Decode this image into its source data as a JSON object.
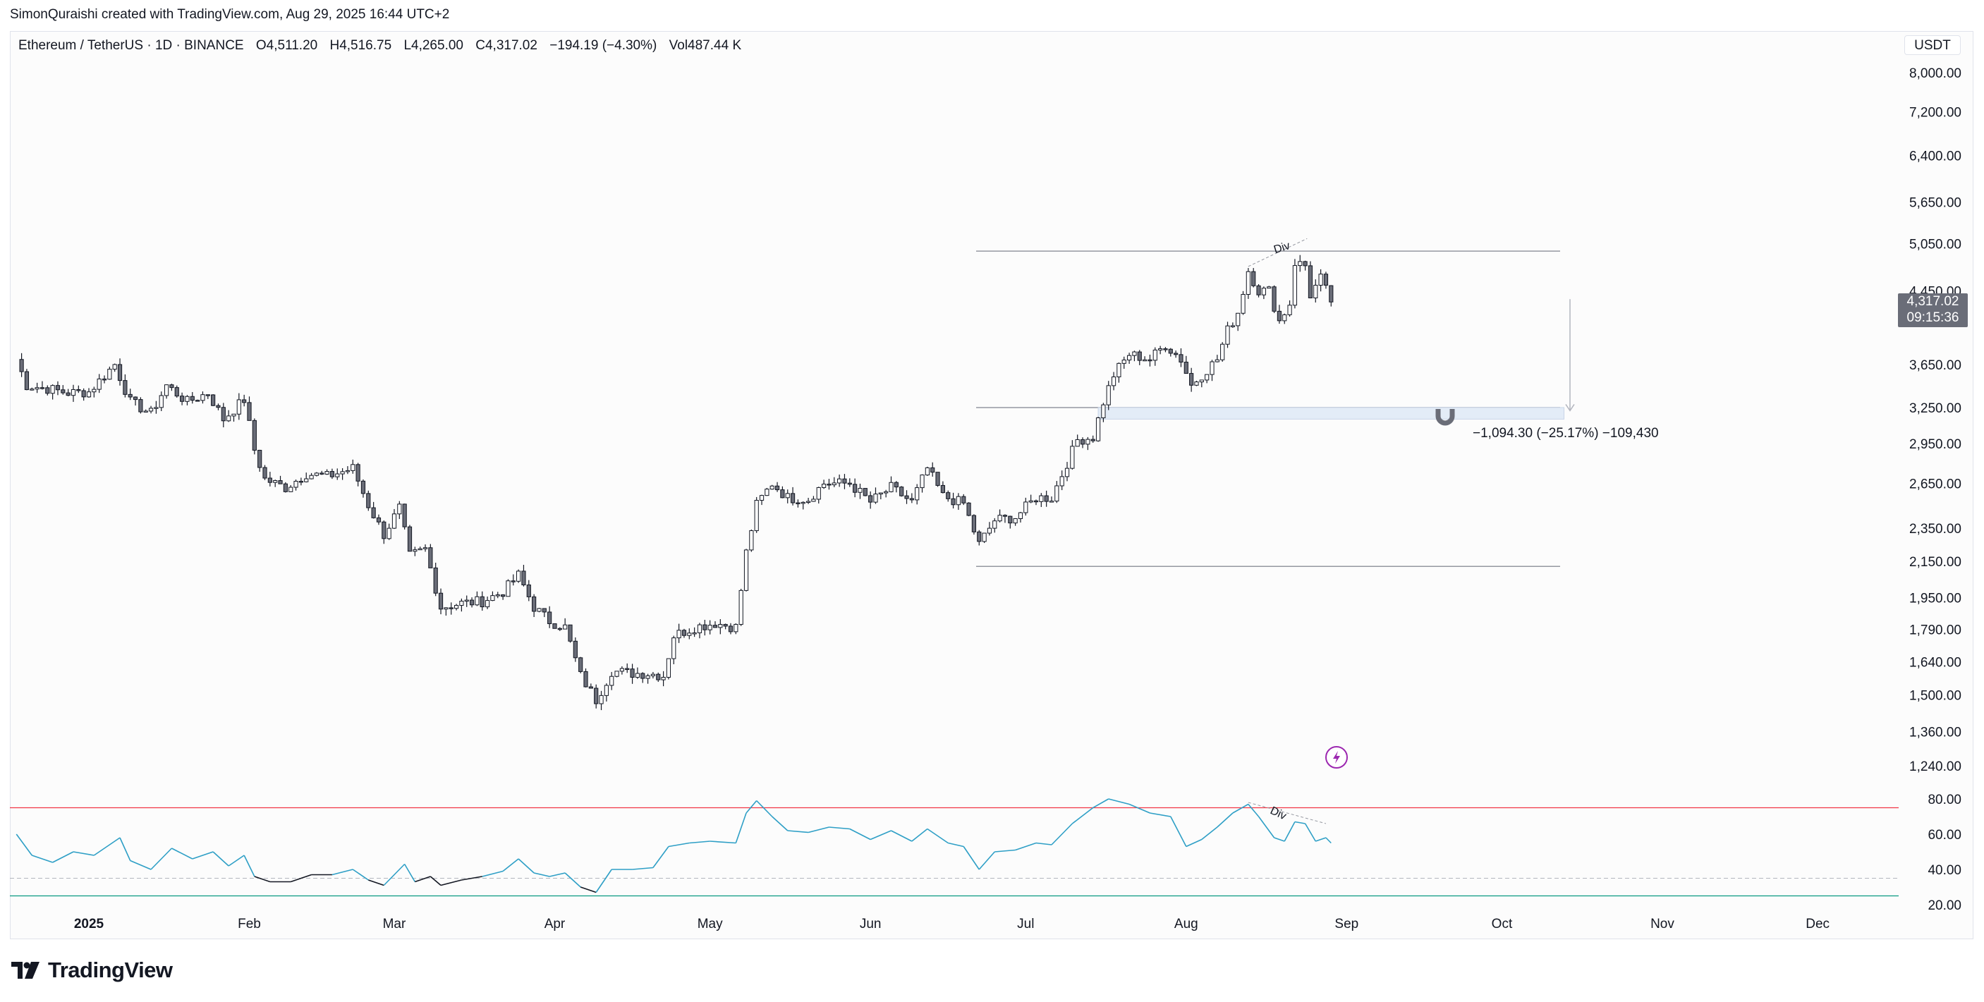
{
  "header": {
    "credit": "SimonQuraishi created with TradingView.com, Aug 29, 2025 16:44 UTC+2"
  },
  "legend": {
    "symbol": "Ethereum / TetherUS · 1D · BINANCE",
    "open": "O4,511.20",
    "high": "H4,516.75",
    "low": "L4,265.00",
    "close": "C4,317.02",
    "change": "−194.19 (−4.30%)",
    "volume": "Vol487.44 K"
  },
  "currency": "USDT",
  "last_price": {
    "price": "4,317.02",
    "countdown": "09:15:36"
  },
  "measure_label": "−1,094.30 (−25.17%) −109,430",
  "brand": "TradingView",
  "colors": {
    "candle_up_fill": "#ffffff",
    "candle_down_fill": "#6a6d78",
    "candle_outline": "#131722",
    "rsi_line": "#2e9fc6",
    "rsi_oversold_line": "#131722",
    "rsi_upper_band": "#f23645",
    "rsi_lower_band": "#089981",
    "zone_fill": "#e3ecf7",
    "indicator_icon": "#9c27b0"
  },
  "chart_data": [
    {
      "type": "candlestick",
      "title": "Ethereum / TetherUS · 1D · BINANCE",
      "y_scale": "log",
      "y_ticks": [
        8000,
        7200,
        6400,
        5650,
        5050,
        4450,
        3650,
        3250,
        2950,
        2650,
        2350,
        2150,
        1950,
        1790,
        1640,
        1500,
        1360,
        1240
      ],
      "y_tick_labels": [
        "8,000.00",
        "7,200.00",
        "6,400.00",
        "5,650.00",
        "5,050.00",
        "4,450.00",
        "3,650.00",
        "3,250.00",
        "2,950.00",
        "2,650.00",
        "2,350.00",
        "2,150.00",
        "1,950.00",
        "1,790.00",
        "1,640.00",
        "1,500.00",
        "1,360.00",
        "1,240.00"
      ],
      "x_tick_labels": [
        "2025",
        "Feb",
        "Mar",
        "Apr",
        "May",
        "Jun",
        "Jul",
        "Aug",
        "Sep",
        "Oct",
        "Nov",
        "Dec"
      ],
      "x_tick_dates": [
        "2025-01-01",
        "2025-02-01",
        "2025-03-01",
        "2025-04-01",
        "2025-05-01",
        "2025-06-01",
        "2025-07-01",
        "2025-08-01",
        "2025-09-01",
        "2025-10-01",
        "2025-11-01",
        "2025-12-01"
      ],
      "series_points": [
        [
          "2024-12-18",
          3700
        ],
        [
          "2024-12-20",
          3450
        ],
        [
          "2024-12-24",
          3420
        ],
        [
          "2024-12-28",
          3380
        ],
        [
          "2025-01-01",
          3390
        ],
        [
          "2025-01-06",
          3650
        ],
        [
          "2025-01-09",
          3300
        ],
        [
          "2025-01-13",
          3200
        ],
        [
          "2025-01-16",
          3450
        ],
        [
          "2025-01-20",
          3300
        ],
        [
          "2025-01-24",
          3380
        ],
        [
          "2025-01-27",
          3150
        ],
        [
          "2025-01-31",
          3320
        ],
        [
          "2025-02-02",
          2900
        ],
        [
          "2025-02-04",
          2680
        ],
        [
          "2025-02-08",
          2620
        ],
        [
          "2025-02-12",
          2720
        ],
        [
          "2025-02-16",
          2700
        ],
        [
          "2025-02-21",
          2760
        ],
        [
          "2025-02-24",
          2500
        ],
        [
          "2025-02-27",
          2310
        ],
        [
          "2025-03-02",
          2480
        ],
        [
          "2025-03-04",
          2180
        ],
        [
          "2025-03-07",
          2220
        ],
        [
          "2025-03-10",
          1900
        ],
        [
          "2025-03-14",
          1920
        ],
        [
          "2025-03-18",
          1930
        ],
        [
          "2025-03-22",
          1980
        ],
        [
          "2025-03-25",
          2070
        ],
        [
          "2025-03-28",
          1900
        ],
        [
          "2025-03-31",
          1830
        ],
        [
          "2025-04-03",
          1800
        ],
        [
          "2025-04-06",
          1580
        ],
        [
          "2025-04-09",
          1480
        ],
        [
          "2025-04-12",
          1600
        ],
        [
          "2025-04-16",
          1590
        ],
        [
          "2025-04-19",
          1590
        ],
        [
          "2025-04-22",
          1580
        ],
        [
          "2025-04-24",
          1760
        ],
        [
          "2025-04-28",
          1800
        ],
        [
          "2025-05-02",
          1820
        ],
        [
          "2025-05-06",
          1800
        ],
        [
          "2025-05-08",
          2200
        ],
        [
          "2025-05-10",
          2500
        ],
        [
          "2025-05-13",
          2650
        ],
        [
          "2025-05-16",
          2550
        ],
        [
          "2025-05-20",
          2540
        ],
        [
          "2025-05-23",
          2650
        ],
        [
          "2025-05-28",
          2650
        ],
        [
          "2025-06-01",
          2520
        ],
        [
          "2025-06-05",
          2620
        ],
        [
          "2025-06-09",
          2520
        ],
        [
          "2025-06-12",
          2760
        ],
        [
          "2025-06-15",
          2560
        ],
        [
          "2025-06-19",
          2510
        ],
        [
          "2025-06-22",
          2250
        ],
        [
          "2025-06-25",
          2400
        ],
        [
          "2025-06-29",
          2420
        ],
        [
          "2025-07-03",
          2550
        ],
        [
          "2025-07-06",
          2550
        ],
        [
          "2025-07-09",
          2800
        ],
        [
          "2025-07-11",
          2980
        ],
        [
          "2025-07-14",
          3000
        ],
        [
          "2025-07-16",
          3300
        ],
        [
          "2025-07-18",
          3550
        ],
        [
          "2025-07-21",
          3750
        ],
        [
          "2025-07-25",
          3700
        ],
        [
          "2025-07-28",
          3850
        ],
        [
          "2025-07-31",
          3700
        ],
        [
          "2025-08-02",
          3450
        ],
        [
          "2025-08-04",
          3550
        ],
        [
          "2025-08-07",
          3700
        ],
        [
          "2025-08-09",
          4000
        ],
        [
          "2025-08-11",
          4200
        ],
        [
          "2025-08-13",
          4700
        ],
        [
          "2025-08-15",
          4450
        ],
        [
          "2025-08-17",
          4450
        ],
        [
          "2025-08-19",
          4100
        ],
        [
          "2025-08-21",
          4300
        ],
        [
          "2025-08-22",
          4800
        ],
        [
          "2025-08-24",
          4760
        ],
        [
          "2025-08-25",
          4400
        ],
        [
          "2025-08-27",
          4600
        ],
        [
          "2025-08-29",
          4317.02
        ]
      ],
      "last_candle": {
        "open": 4511.2,
        "high": 4516.75,
        "low": 4265.0,
        "close": 4317.02
      },
      "horizontal_levels": [
        4950,
        3250,
        2120
      ],
      "zone": {
        "from_date": "2025-07-15",
        "to_date": "2025-10-13",
        "top": 3250,
        "bottom": 3150
      },
      "measure": {
        "from": 4317.02,
        "to": 3222.72
      },
      "annotations": [
        "Div"
      ]
    },
    {
      "type": "line",
      "title": "",
      "y_ticks": [
        80,
        60,
        40,
        20
      ],
      "y_tick_labels": [
        "80.00",
        "60.00",
        "40.00",
        "20.00"
      ],
      "bands": {
        "upper": 75,
        "lower": 25,
        "mid": 35
      },
      "series": [
        {
          "points": [
            [
              "2024-12-18",
              60
            ],
            [
              "2024-12-21",
              48
            ],
            [
              "2024-12-25",
              44
            ],
            [
              "2024-12-29",
              50
            ],
            [
              "2025-01-02",
              48
            ],
            [
              "2025-01-07",
              58
            ],
            [
              "2025-01-09",
              45
            ],
            [
              "2025-01-13",
              40
            ],
            [
              "2025-01-17",
              52
            ],
            [
              "2025-01-21",
              46
            ],
            [
              "2025-01-25",
              50
            ],
            [
              "2025-01-28",
              42
            ],
            [
              "2025-01-31",
              48
            ],
            [
              "2025-02-02",
              36
            ],
            [
              "2025-02-05",
              33
            ],
            [
              "2025-02-09",
              33
            ],
            [
              "2025-02-13",
              37
            ],
            [
              "2025-02-17",
              37
            ],
            [
              "2025-02-21",
              40
            ],
            [
              "2025-02-24",
              34
            ],
            [
              "2025-02-27",
              31
            ],
            [
              "2025-03-03",
              43
            ],
            [
              "2025-03-05",
              33
            ],
            [
              "2025-03-08",
              36
            ],
            [
              "2025-03-10",
              31
            ],
            [
              "2025-03-14",
              34
            ],
            [
              "2025-03-18",
              36
            ],
            [
              "2025-03-22",
              39
            ],
            [
              "2025-03-25",
              46
            ],
            [
              "2025-03-28",
              38
            ],
            [
              "2025-03-31",
              36
            ],
            [
              "2025-04-03",
              38
            ],
            [
              "2025-04-06",
              30
            ],
            [
              "2025-04-09",
              27
            ],
            [
              "2025-04-12",
              40
            ],
            [
              "2025-04-16",
              40
            ],
            [
              "2025-04-20",
              41
            ],
            [
              "2025-04-23",
              53
            ],
            [
              "2025-04-27",
              55
            ],
            [
              "2025-05-01",
              56
            ],
            [
              "2025-05-06",
              55
            ],
            [
              "2025-05-08",
              72
            ],
            [
              "2025-05-10",
              79
            ],
            [
              "2025-05-13",
              70
            ],
            [
              "2025-05-16",
              62
            ],
            [
              "2025-05-20",
              61
            ],
            [
              "2025-05-24",
              64
            ],
            [
              "2025-05-28",
              63
            ],
            [
              "2025-06-01",
              57
            ],
            [
              "2025-06-05",
              62
            ],
            [
              "2025-06-09",
              56
            ],
            [
              "2025-06-12",
              63
            ],
            [
              "2025-06-16",
              55
            ],
            [
              "2025-06-19",
              53
            ],
            [
              "2025-06-22",
              40
            ],
            [
              "2025-06-25",
              50
            ],
            [
              "2025-06-29",
              51
            ],
            [
              "2025-07-03",
              55
            ],
            [
              "2025-07-06",
              54
            ],
            [
              "2025-07-10",
              66
            ],
            [
              "2025-07-14",
              75
            ],
            [
              "2025-07-17",
              80
            ],
            [
              "2025-07-21",
              77
            ],
            [
              "2025-07-25",
              72
            ],
            [
              "2025-07-29",
              70
            ],
            [
              "2025-08-01",
              53
            ],
            [
              "2025-08-04",
              57
            ],
            [
              "2025-08-07",
              64
            ],
            [
              "2025-08-10",
              72
            ],
            [
              "2025-08-13",
              77
            ],
            [
              "2025-08-15",
              70
            ],
            [
              "2025-08-18",
              58
            ],
            [
              "2025-08-20",
              56
            ],
            [
              "2025-08-22",
              67
            ],
            [
              "2025-08-24",
              66
            ],
            [
              "2025-08-26",
              56
            ],
            [
              "2025-08-28",
              58
            ],
            [
              "2025-08-29",
              55
            ]
          ]
        }
      ],
      "annotations": [
        "Div"
      ]
    }
  ]
}
